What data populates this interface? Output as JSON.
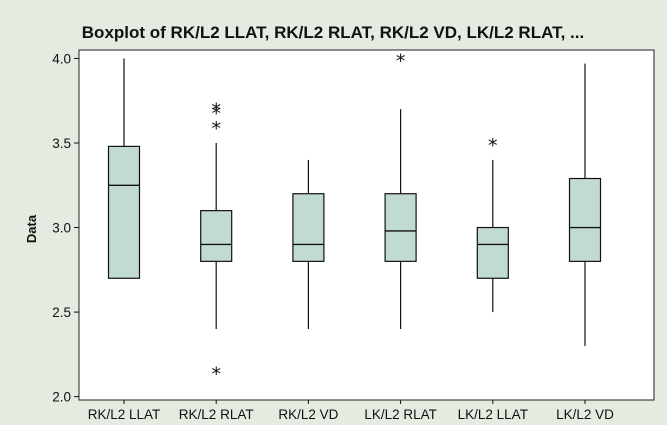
{
  "chart_data": {
    "type": "boxplot",
    "title": "Boxplot of RK/L2 LLAT, RK/L2 RLAT, RK/L2 VD, LK/L2 RLAT, ...",
    "xlabel": "",
    "ylabel": "Data",
    "ylim": [
      1.98,
      4.05
    ],
    "yticks": [
      2.0,
      2.5,
      3.0,
      3.5,
      4.0
    ],
    "ytick_labels": [
      "2.0",
      "2.5",
      "3.0",
      "3.5",
      "4.0"
    ],
    "grid": false,
    "colors": {
      "box_fill": "#c2dbd2",
      "line": "#111111",
      "panel": "#ffffff",
      "background": "#e4ebe0"
    },
    "categories": [
      "RK/L2 LLAT",
      "RK/L2 RLAT",
      "RK/L2 VD",
      "LK/L2 RLAT",
      "LK/L2 LLAT",
      "LK/L2 VD"
    ],
    "boxes": [
      {
        "whisker_low": 2.7,
        "q1": 2.7,
        "median": 3.25,
        "q3": 3.48,
        "whisker_high": 4.0,
        "outliers": []
      },
      {
        "whisker_low": 2.4,
        "q1": 2.8,
        "median": 2.9,
        "q3": 3.1,
        "whisker_high": 3.5,
        "outliers": [
          3.6,
          3.69,
          3.71,
          2.15
        ]
      },
      {
        "whisker_low": 2.4,
        "q1": 2.8,
        "median": 2.9,
        "q3": 3.2,
        "whisker_high": 3.4,
        "outliers": []
      },
      {
        "whisker_low": 2.4,
        "q1": 2.8,
        "median": 2.98,
        "q3": 3.2,
        "whisker_high": 3.7,
        "outliers": [
          4.0
        ]
      },
      {
        "whisker_low": 2.5,
        "q1": 2.7,
        "median": 2.9,
        "q3": 3.0,
        "whisker_high": 3.4,
        "outliers": [
          3.5
        ]
      },
      {
        "whisker_low": 2.3,
        "q1": 2.8,
        "median": 3.0,
        "q3": 3.29,
        "whisker_high": 3.97,
        "outliers": []
      }
    ]
  }
}
